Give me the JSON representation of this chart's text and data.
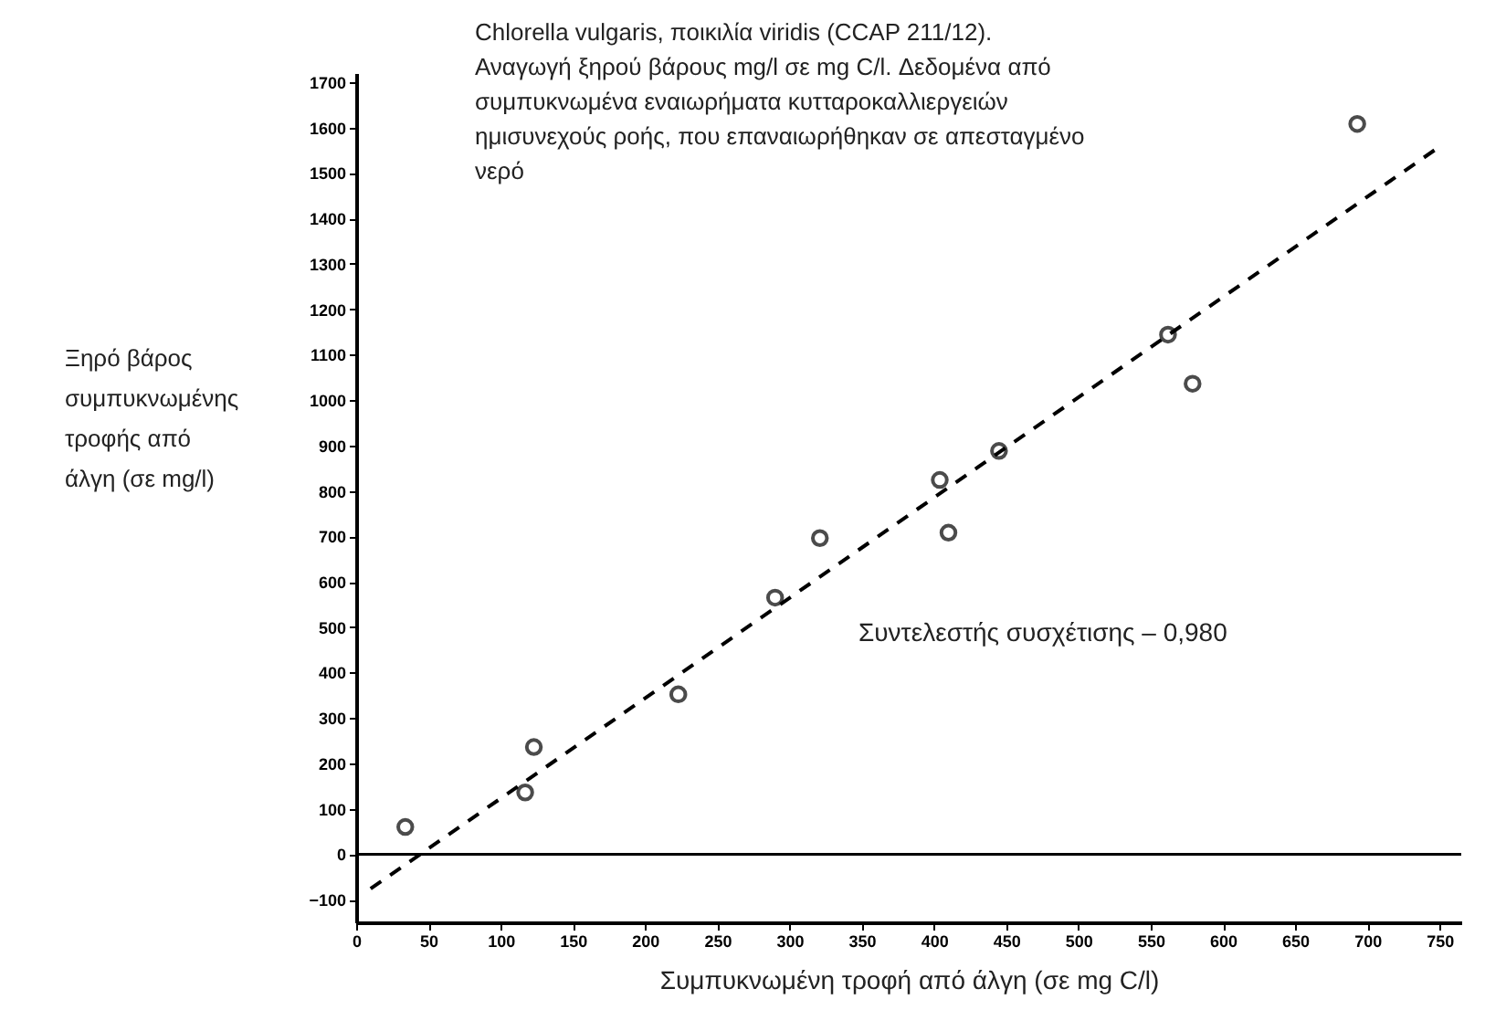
{
  "chart_data": {
    "type": "scatter",
    "title": "Chlorella vulgaris, ποικιλία viridis (CCAP 211/12). Αναγωγή ξηρού βάρους mg/l σε mg C/l. Δεδομένα από συμπυκνωμένα εναιωρήματα κυτταροκαλλιεργειών ημισυνεχούς ροής, που επαναιωρήθηκαν σε απεσταγμένο νερό",
    "xlabel": "Συμπυκνωμένη τροφή από άλγη (σε mg C/l)",
    "ylabel": "Ξηρό βάρος συμπυκνωμένης τροφής από άλγη (σε mg/l)",
    "annotations": [
      "Συντελεστής συσχέτισης – 0,980"
    ],
    "series": [
      {
        "color": "#000000",
        "marker": "circle",
        "x": [
          34,
          117,
          123,
          223,
          290,
          321,
          404,
          410,
          445,
          562,
          579,
          693
        ],
        "values": [
          60,
          136,
          236,
          352,
          565,
          696,
          824,
          708,
          888,
          1144,
          1036,
          1608
        ]
      },
      {
        "type": "line",
        "color": "#000000",
        "line_style": "dashed",
        "marker": "none",
        "x": [
          10,
          750
        ],
        "values": [
          -76,
          1558
        ]
      }
    ],
    "xlim": [
      0,
      765
    ],
    "xticks": [
      0,
      50,
      100,
      150,
      200,
      250,
      300,
      350,
      400,
      450,
      500,
      550,
      600,
      650,
      700,
      750
    ],
    "ylim": [
      -150,
      1720
    ],
    "yticks": [
      -100,
      0,
      100,
      200,
      300,
      400,
      500,
      600,
      700,
      800,
      900,
      1000,
      1100,
      1200,
      1300,
      1400,
      1500,
      1600,
      1700
    ],
    "ref_lines": [
      {
        "axis": "y",
        "value": 0,
        "color": "#000000",
        "line_style": "solid"
      }
    ],
    "grid": false
  }
}
